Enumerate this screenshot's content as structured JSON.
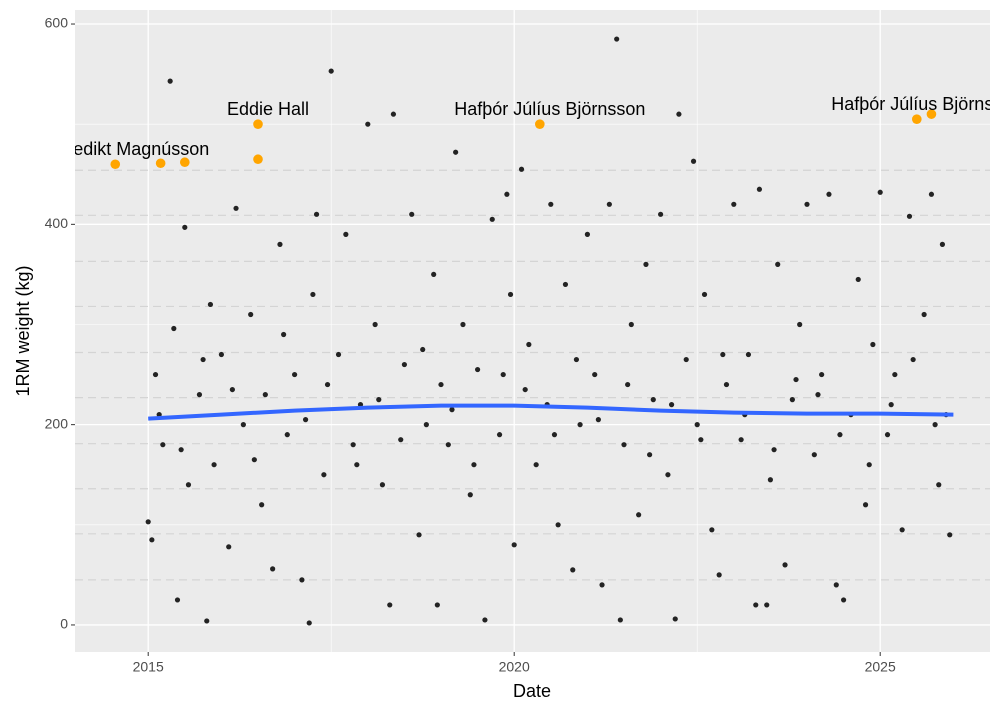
{
  "chart_data": {
    "type": "scatter",
    "xlabel": "Date",
    "ylabel": "1RM weight (kg)",
    "xlim": [
      2014.0,
      2026.5
    ],
    "ylim": [
      -27,
      614
    ],
    "xticks": [
      2015,
      2020,
      2025
    ],
    "yticks": [
      0,
      200,
      400,
      600
    ],
    "xminor": [
      2017.5,
      2022.5
    ],
    "yminor": [
      100,
      300,
      500
    ],
    "grid": true,
    "hlines": [
      454,
      409,
      363,
      318,
      272,
      227,
      181,
      136,
      91,
      45
    ],
    "hline_color": "#d4d4d4",
    "series": [
      {
        "color": "#000000",
        "x": [
          2015.0,
          2015.05,
          2015.1,
          2015.2,
          2015.3,
          2015.35,
          2015.4,
          2015.5,
          2015.55,
          2015.7,
          2015.8,
          2015.85,
          2015.9,
          2016.0,
          2016.1,
          2016.2,
          2016.3,
          2016.4,
          2016.55,
          2016.6,
          2016.7,
          2016.8,
          2016.9,
          2017.0,
          2017.1,
          2017.2,
          2017.25,
          2017.3,
          2017.4,
          2017.5,
          2017.6,
          2017.7,
          2017.8,
          2017.9,
          2018.0,
          2018.1,
          2018.2,
          2018.3,
          2018.35,
          2018.5,
          2018.6,
          2018.7,
          2018.8,
          2018.9,
          2018.95,
          2019.0,
          2019.1,
          2019.2,
          2019.3,
          2019.4,
          2019.5,
          2019.6,
          2019.7,
          2019.8,
          2019.9,
          2019.95,
          2020.0,
          2020.1,
          2020.2,
          2020.3,
          2020.45,
          2020.5,
          2020.6,
          2020.7,
          2020.8,
          2020.9,
          2021.0,
          2021.1,
          2021.2,
          2021.3,
          2021.4,
          2021.45,
          2021.5,
          2021.6,
          2021.7,
          2021.8,
          2021.9,
          2022.0,
          2022.1,
          2022.2,
          2022.25,
          2022.35,
          2022.45,
          2022.5,
          2022.6,
          2022.7,
          2022.8,
          2022.9,
          2023.0,
          2023.1,
          2023.2,
          2023.3,
          2023.35,
          2023.45,
          2023.5,
          2023.6,
          2023.7,
          2023.8,
          2023.9,
          2024.0,
          2024.1,
          2024.2,
          2024.3,
          2024.4,
          2024.5,
          2024.6,
          2024.7,
          2024.8,
          2024.9,
          2025.0,
          2025.1,
          2025.2,
          2025.3,
          2025.4,
          2025.6,
          2025.7,
          2025.8,
          2025.85,
          2025.9,
          2025.95,
          2015.15,
          2015.45,
          2015.75,
          2016.15,
          2016.45,
          2016.85,
          2017.15,
          2017.45,
          2017.85,
          2018.15,
          2018.45,
          2018.75,
          2019.15,
          2019.45,
          2019.85,
          2020.15,
          2020.55,
          2020.85,
          2021.15,
          2021.55,
          2021.85,
          2022.15,
          2022.55,
          2022.85,
          2023.15,
          2023.55,
          2023.85,
          2024.15,
          2024.45,
          2024.85,
          2025.15,
          2025.45,
          2025.75
        ],
        "values": [
          103,
          85,
          250,
          180,
          543,
          296,
          25,
          397,
          140,
          230,
          4,
          320,
          160,
          270,
          78,
          416,
          200,
          310,
          120,
          230,
          56,
          380,
          190,
          250,
          45,
          2,
          330,
          410,
          150,
          553,
          270,
          390,
          180,
          220,
          500,
          300,
          140,
          20,
          510,
          260,
          410,
          90,
          200,
          350,
          20,
          240,
          180,
          472,
          300,
          130,
          255,
          5,
          405,
          190,
          430,
          330,
          80,
          455,
          280,
          160,
          220,
          420,
          100,
          340,
          55,
          200,
          390,
          250,
          40,
          420,
          585,
          5,
          180,
          300,
          110,
          360,
          225,
          410,
          150,
          6,
          510,
          265,
          463,
          200,
          330,
          95,
          50,
          240,
          420,
          185,
          270,
          20,
          435,
          20,
          145,
          360,
          60,
          225,
          300,
          420,
          170,
          250,
          430,
          40,
          25,
          210,
          345,
          120,
          280,
          432,
          190,
          250,
          95,
          408,
          310,
          430,
          140,
          380,
          210,
          90,
          210,
          175,
          265,
          235,
          165,
          290,
          205,
          240,
          160,
          225,
          185,
          275,
          215,
          160,
          250,
          235,
          190,
          265,
          205,
          240,
          170,
          220,
          185,
          270,
          210,
          175,
          245,
          230,
          190,
          160,
          220,
          265,
          200
        ]
      },
      {
        "color": "#ffa500",
        "x": [
          2014.55,
          2015.17,
          2015.5,
          2016.5,
          2016.5,
          2020.35,
          2025.5,
          2025.7
        ],
        "values": [
          460,
          461,
          462,
          500,
          465,
          500,
          505,
          510
        ],
        "labels": [
          "Benedikt Magnússon",
          null,
          null,
          "Eddie Hall",
          null,
          "Hafþór Júlíus Björnsson",
          "Hafþór Júlíus Björnsson",
          null
        ]
      }
    ],
    "smooth": {
      "color": "#3366ff",
      "x": [
        2015.0,
        2016.0,
        2017.0,
        2018.0,
        2019.0,
        2020.0,
        2021.0,
        2022.0,
        2023.0,
        2024.0,
        2025.0,
        2026.0
      ],
      "values": [
        206,
        210,
        214,
        217,
        219,
        219,
        217,
        214,
        212,
        211,
        211,
        210
      ]
    }
  }
}
